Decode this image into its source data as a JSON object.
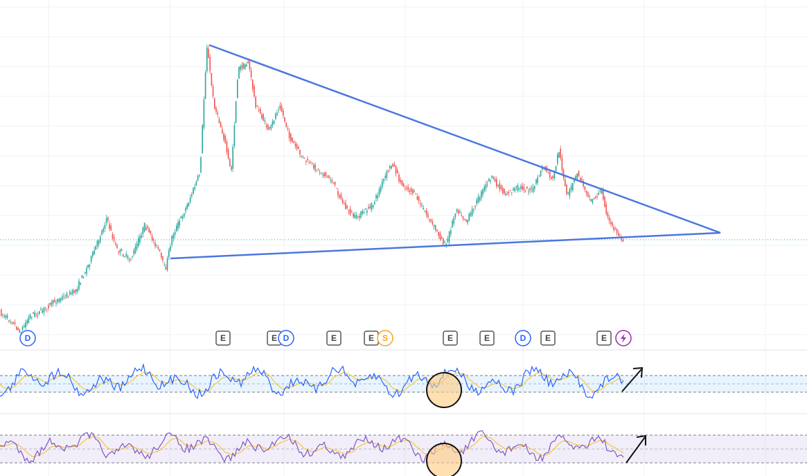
{
  "events": [
    {
      "kind": "dividend",
      "label": "D"
    },
    {
      "kind": "earnings",
      "label": "E"
    },
    {
      "kind": "earnings",
      "label": "E"
    },
    {
      "kind": "dividend",
      "label": "D"
    },
    {
      "kind": "earnings",
      "label": "E"
    },
    {
      "kind": "earnings",
      "label": "E"
    },
    {
      "kind": "split",
      "label": "S"
    },
    {
      "kind": "earnings",
      "label": "E"
    },
    {
      "kind": "earnings",
      "label": "E"
    },
    {
      "kind": "dividend",
      "label": "D"
    },
    {
      "kind": "earnings",
      "label": "E"
    },
    {
      "kind": "earnings",
      "label": "E"
    }
  ]
}
